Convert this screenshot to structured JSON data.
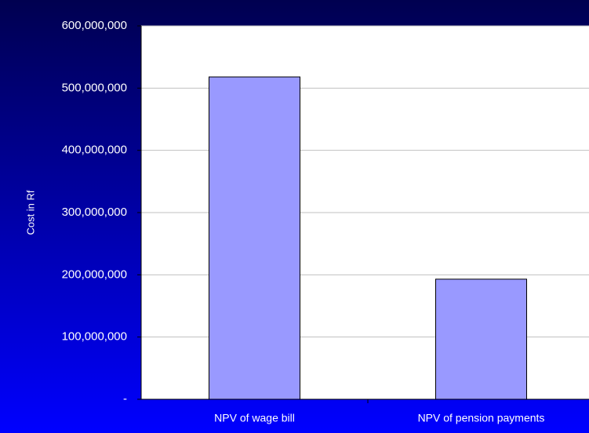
{
  "chart_data": {
    "type": "bar",
    "y_label": "Cost in Rf",
    "categories": [
      "NPV of wage bill",
      "NPV of pension payments"
    ],
    "values": [
      518000000,
      193000000
    ],
    "color": "#9999ff",
    "ylim": [
      0,
      600000000
    ],
    "yticks": [
      {
        "value": 0,
        "label": "-"
      },
      {
        "value": 100000000,
        "label": "100,000,000"
      },
      {
        "value": 200000000,
        "label": "200,000,000"
      },
      {
        "value": 300000000,
        "label": "300,000,000"
      },
      {
        "value": 400000000,
        "label": "400,000,000"
      },
      {
        "value": 500000000,
        "label": "500,000,000"
      },
      {
        "value": 600000000,
        "label": "600,000,000"
      }
    ],
    "grid": true
  }
}
